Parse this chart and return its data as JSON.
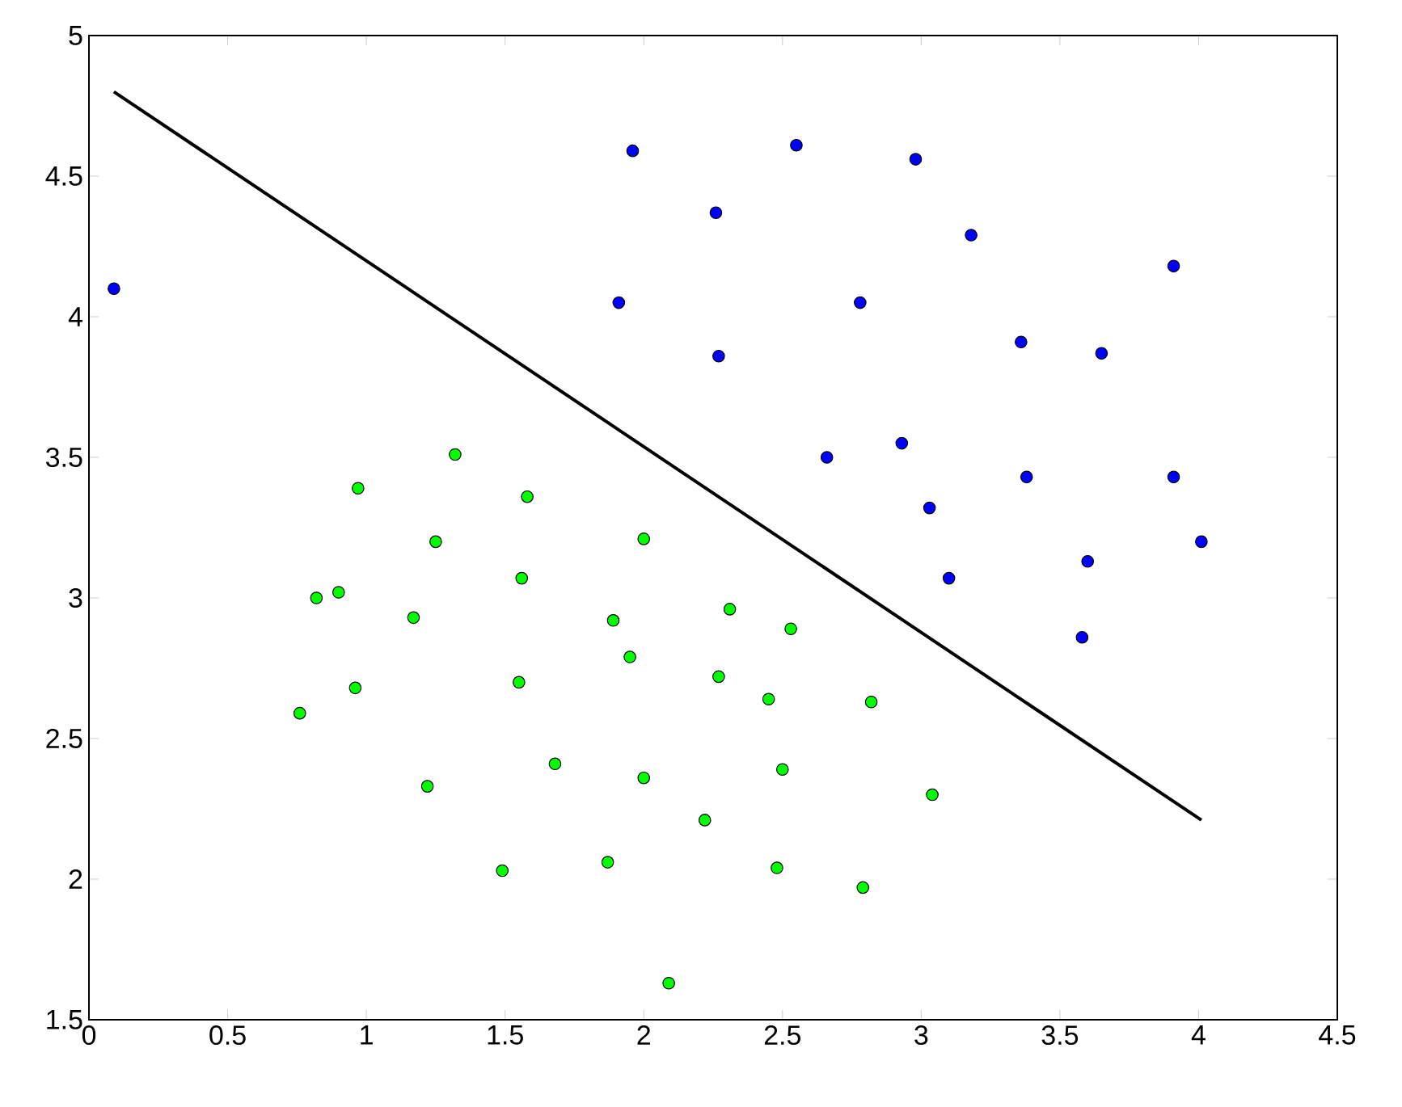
{
  "chart_data": {
    "type": "scatter",
    "xlim": [
      0,
      4.5
    ],
    "ylim": [
      1.5,
      5
    ],
    "xticks": [
      0,
      0.5,
      1,
      1.5,
      2,
      2.5,
      3,
      3.5,
      4,
      4.5
    ],
    "yticks": [
      1.5,
      2,
      2.5,
      3,
      3.5,
      4,
      4.5,
      5
    ],
    "grid": false,
    "series": [
      {
        "color": "#0000ff",
        "marker": "circle",
        "x": [
          0.09,
          1.96,
          2.55,
          2.98,
          2.26,
          3.18,
          1.91,
          2.78,
          2.27,
          3.36,
          3.65,
          3.91,
          2.66,
          2.93,
          3.38,
          3.91,
          3.03,
          4.01,
          3.1,
          3.6,
          3.58
        ],
        "values": [
          4.1,
          4.59,
          4.61,
          4.56,
          4.37,
          4.29,
          4.05,
          4.05,
          3.86,
          3.91,
          3.87,
          4.18,
          3.5,
          3.55,
          3.43,
          3.43,
          3.32,
          3.2,
          3.07,
          3.13,
          2.86
        ]
      },
      {
        "color": "#00ff00",
        "marker": "circle",
        "x": [
          1.32,
          0.97,
          1.58,
          1.25,
          2.0,
          0.82,
          0.9,
          1.56,
          1.17,
          1.89,
          2.31,
          2.53,
          1.95,
          0.76,
          0.96,
          1.55,
          2.27,
          2.45,
          2.82,
          1.68,
          2.0,
          2.5,
          1.22,
          3.04,
          2.22,
          1.49,
          1.87,
          2.48,
          2.79,
          2.09
        ],
        "values": [
          3.51,
          3.39,
          3.36,
          3.2,
          3.21,
          3.0,
          3.02,
          3.07,
          2.93,
          2.92,
          2.96,
          2.89,
          2.79,
          2.59,
          2.68,
          2.7,
          2.72,
          2.64,
          2.63,
          2.41,
          2.36,
          2.39,
          2.33,
          2.3,
          2.21,
          2.03,
          2.06,
          2.04,
          1.97,
          1.63
        ]
      },
      {
        "type": "line",
        "color": "#000000",
        "line_style": "solid",
        "marker": "none",
        "x": [
          0.09,
          4.01
        ],
        "values": [
          4.8,
          2.21
        ]
      }
    ]
  }
}
